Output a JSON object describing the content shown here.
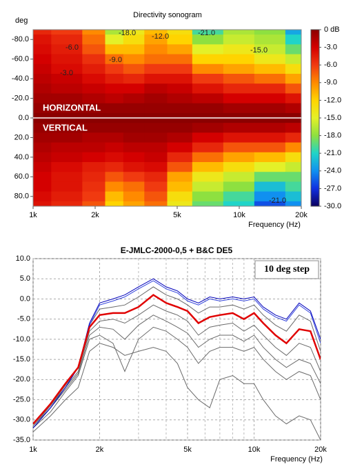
{
  "chart_data": [
    {
      "type": "heatmap",
      "title": "Directivity sonogram",
      "ylabel": "deg",
      "xlabel": "Frequency (Hz)",
      "xscale": "log",
      "x": [
        1000,
        1500,
        2000,
        2500,
        3000,
        4000,
        5000,
        7000,
        10000,
        14000,
        20000
      ],
      "y": [
        -90,
        -80,
        -70,
        -60,
        -50,
        -40,
        -30,
        -20,
        -10,
        0,
        10,
        20,
        30,
        40,
        50,
        60,
        70,
        80,
        90
      ],
      "values": [
        [
          -5,
          -6,
          -9,
          -17,
          -14,
          -11,
          -13,
          -20,
          -17,
          -18,
          -23
        ],
        [
          -4,
          -5,
          -8,
          -15,
          -13,
          -10,
          -12,
          -18,
          -16,
          -17,
          -21
        ],
        [
          -3.5,
          -4.5,
          -7,
          -11,
          -11,
          -9,
          -10,
          -15,
          -14,
          -16,
          -19
        ],
        [
          -3,
          -4,
          -5.5,
          -8,
          -9,
          -8,
          -8,
          -12,
          -12,
          -14,
          -16
        ],
        [
          -2.5,
          -3.5,
          -4.5,
          -6,
          -7,
          -6,
          -6,
          -9,
          -10,
          -11,
          -13
        ],
        [
          -2,
          -2.5,
          -3.5,
          -4.5,
          -5,
          -4,
          -4,
          -6,
          -7,
          -8,
          -10
        ],
        [
          -1.5,
          -2,
          -2.5,
          -3,
          -3,
          -2,
          -2.5,
          -4,
          -5,
          -5,
          -7
        ],
        [
          -1,
          -1,
          -1.5,
          -2,
          -1.5,
          -1,
          -1.5,
          -2,
          -3,
          -3,
          -4
        ],
        [
          -0.5,
          -0.5,
          -0.5,
          -0.5,
          -0.5,
          -0.5,
          -0.5,
          -0.5,
          -1,
          -1,
          -1.5
        ],
        [
          0,
          0,
          0,
          0,
          0,
          0,
          0,
          0,
          0,
          0,
          0
        ],
        [
          -0.5,
          -0.5,
          -0.5,
          -0.5,
          -0.5,
          -0.5,
          -0.5,
          -1,
          -1.5,
          -1.5,
          -2
        ],
        [
          -1,
          -1,
          -1.5,
          -1.5,
          -1,
          -1,
          -1.5,
          -3,
          -4,
          -4,
          -5
        ],
        [
          -1.5,
          -2,
          -2,
          -2.5,
          -2,
          -2,
          -3,
          -5,
          -7,
          -7,
          -9
        ],
        [
          -2,
          -2.5,
          -3,
          -3.5,
          -3,
          -2.5,
          -5,
          -8,
          -10,
          -11,
          -13
        ],
        [
          -2.5,
          -3.5,
          -4.5,
          -5,
          -4,
          -3.5,
          -7,
          -11,
          -13,
          -15,
          -16
        ],
        [
          -3,
          -4,
          -5,
          -7,
          -6,
          -5,
          -10,
          -14,
          -16,
          -19,
          -19
        ],
        [
          -3,
          -4,
          -5.5,
          -9,
          -8,
          -6,
          -11,
          -16,
          -18,
          -22,
          -20
        ],
        [
          -3.5,
          -4.5,
          -6,
          -11,
          -9,
          -7,
          -13,
          -18,
          -20,
          -24,
          -22
        ],
        [
          -4,
          -5,
          -7,
          -12,
          -10,
          -8,
          -14,
          -19,
          -21,
          -26,
          -24
        ]
      ],
      "xlim": [
        1000,
        20000
      ],
      "xticks": [
        {
          "value": 1000,
          "label": "1k"
        },
        {
          "value": 2000,
          "label": "2k"
        },
        {
          "value": 5000,
          "label": "5k"
        },
        {
          "value": 10000,
          "label": "10k"
        },
        {
          "value": 20000,
          "label": "20k"
        }
      ],
      "ylim": [
        -90,
        90
      ],
      "yticks": [
        {
          "value": -80,
          "label": "-80.0"
        },
        {
          "value": -60,
          "label": "-60.0"
        },
        {
          "value": -40,
          "label": "-40.0"
        },
        {
          "value": -20,
          "label": "-20.0"
        },
        {
          "value": 0,
          "label": "0.0"
        },
        {
          "value": 20,
          "label": "20.0"
        },
        {
          "value": 40,
          "label": "40.0"
        },
        {
          "value": 60,
          "label": "60.0"
        },
        {
          "value": 80,
          "label": "80.0"
        }
      ],
      "zlim": [
        -30,
        0
      ],
      "zticks": [
        {
          "value": 0,
          "label": "0 dB"
        },
        {
          "value": -3,
          "label": "-3.0"
        },
        {
          "value": -6,
          "label": "-6.0"
        },
        {
          "value": -9,
          "label": "-9.0"
        },
        {
          "value": -12,
          "label": "-12.0"
        },
        {
          "value": -15,
          "label": "-15.0"
        },
        {
          "value": -18,
          "label": "-18.0"
        },
        {
          "value": -21,
          "label": "-21.0"
        },
        {
          "value": -24,
          "label": "-24.0"
        },
        {
          "value": -27,
          "label": "-27.0"
        },
        {
          "value": -30,
          "label": "-30.0"
        }
      ],
      "colors": [
        "#8b0000",
        "#d40000",
        "#f03a10",
        "#ff8a00",
        "#ffd400",
        "#e4f028",
        "#8ee040",
        "#20d4c8",
        "#1090f0",
        "#1030e0",
        "#0c0060"
      ],
      "annotations": [
        "-18.0",
        "-12.0",
        "-21.0",
        "-6.0",
        "-9.0",
        "-15.0",
        "-3.0",
        "-21.0"
      ],
      "region_labels": [
        "HORIZONTAL",
        "VERTICAL"
      ]
    },
    {
      "type": "line",
      "title": "E-JMLC-2000-0,5 + B&C DE5",
      "xlabel": "Frequency (Hz)",
      "xscale": "log",
      "annotation": "10 deg step",
      "x": [
        1000,
        1200,
        1400,
        1600,
        1800,
        2000,
        2300,
        2600,
        3000,
        3500,
        4000,
        4500,
        5000,
        5600,
        6300,
        7000,
        8000,
        9000,
        10000,
        11000,
        12500,
        14000,
        16000,
        18000,
        20000
      ],
      "xlim": [
        1000,
        20000
      ],
      "xticks": [
        {
          "value": 1000,
          "label": "1k"
        },
        {
          "value": 2000,
          "label": "2k"
        },
        {
          "value": 5000,
          "label": "5k"
        },
        {
          "value": 10000,
          "label": "10k"
        },
        {
          "value": 20000,
          "label": "20k"
        }
      ],
      "xminorticks": [
        3000,
        4000,
        6000,
        7000,
        8000,
        9000
      ],
      "ylim": [
        -35,
        10
      ],
      "yticks": [
        {
          "value": 10,
          "label": "10.0"
        },
        {
          "value": 5,
          "label": "5.0"
        },
        {
          "value": 0,
          "label": "0.0"
        },
        {
          "value": -5,
          "label": "-5.0"
        },
        {
          "value": -10,
          "label": "-10.0"
        },
        {
          "value": -15,
          "label": "-15.0"
        },
        {
          "value": -20,
          "label": "-20.0"
        },
        {
          "value": -25,
          "label": "-25.0"
        },
        {
          "value": -30,
          "label": "-30.0"
        },
        {
          "value": -35,
          "label": "-35.0"
        }
      ],
      "grid": true,
      "series": [
        {
          "color": "#6a6a6a",
          "values": [
            -33,
            -29,
            -25,
            -22,
            -13,
            -11,
            -12,
            -14,
            -13,
            -12,
            -13,
            -16,
            -22,
            -25,
            -27,
            -20,
            -19,
            -21,
            -21,
            -25,
            -29,
            -31,
            -29,
            -30,
            -35
          ]
        },
        {
          "color": "#6a6a6a",
          "values": [
            -32,
            -28,
            -23,
            -19,
            -10,
            -9,
            -11,
            -18,
            -10,
            -7,
            -8,
            -10,
            -12,
            -16,
            -13,
            -12,
            -12,
            -13,
            -12,
            -15,
            -18,
            -20,
            -18,
            -19,
            -25
          ]
        },
        {
          "color": "#6a6a6a",
          "values": [
            -31.5,
            -27,
            -22.5,
            -18.5,
            -9,
            -7,
            -7.5,
            -10,
            -6.5,
            -4,
            -5.5,
            -7,
            -8.5,
            -12,
            -10,
            -9,
            -9,
            -10.5,
            -9,
            -12,
            -15,
            -17,
            -15,
            -16,
            -21
          ]
        },
        {
          "color": "#6a6a6a",
          "values": [
            -31,
            -26.5,
            -22,
            -18,
            -8,
            -5.5,
            -5,
            -6,
            -4,
            -1.5,
            -3,
            -4,
            -5.5,
            -9,
            -7,
            -6.5,
            -6,
            -8,
            -6.5,
            -9,
            -12,
            -14,
            -11,
            -12,
            -18
          ]
        },
        {
          "color": "#6a6a6a",
          "values": [
            -31.5,
            -26.5,
            -21.5,
            -17,
            -6.5,
            -2.5,
            -2,
            -1.5,
            0.5,
            3,
            1,
            0,
            -1.5,
            -3.5,
            -2,
            -2,
            -1.5,
            -2.5,
            -1.5,
            -4,
            -6.5,
            -8,
            -4,
            -5.5,
            -13
          ]
        },
        {
          "color": "#3344dd",
          "values": [
            -32,
            -27,
            -22,
            -17,
            -6.5,
            -1.5,
            -0.5,
            0.5,
            2.5,
            4.5,
            2.5,
            1.5,
            -0.5,
            -1.5,
            0,
            -0.5,
            0,
            -0.5,
            0,
            -2.5,
            -4.5,
            -5.5,
            -1.5,
            -3.5,
            -11
          ]
        },
        {
          "color": "#0000bb",
          "values": [
            -32,
            -27,
            -22,
            -17,
            -6,
            -1,
            0,
            1,
            3,
            5,
            3,
            2,
            0,
            -1,
            0.5,
            0,
            0.5,
            0,
            0.5,
            -2,
            -4,
            -5,
            -1,
            -3,
            -10
          ]
        },
        {
          "color": "#e00000",
          "values": [
            -31,
            -26,
            -21,
            -17,
            -7,
            -4,
            -3.5,
            -3.5,
            -2,
            1,
            -1,
            -2,
            -3,
            -6,
            -4.5,
            -4,
            -3.5,
            -5,
            -3.5,
            -6,
            -9,
            -11,
            -7.5,
            -8,
            -15
          ]
        }
      ]
    }
  ]
}
